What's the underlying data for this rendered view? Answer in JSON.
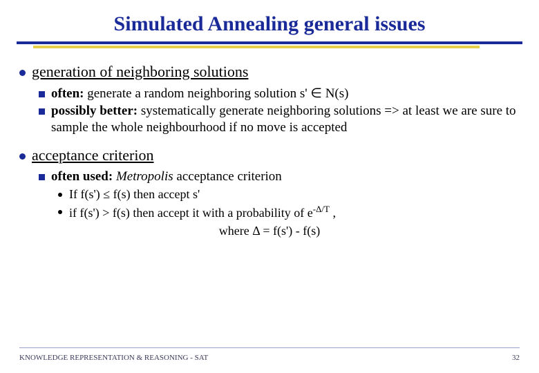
{
  "colors": {
    "title": "#1a2b99",
    "rule": "#1a2b99",
    "rule_accent": "#e6cf4a",
    "bullet_primary": "#1a2b99",
    "bullet_tertiary": "#000000",
    "background": "#ffffff",
    "footer_line": "#9aa0c7",
    "footer_text": "#3a3a5a"
  },
  "typography": {
    "family": "Times New Roman",
    "title_size_pt": 30,
    "b1_size_pt": 22,
    "b2_size_pt": 19,
    "b3_size_pt": 18,
    "footer_size_pt": 11
  },
  "title": "Simulated Annealing general issues",
  "sections": [
    {
      "heading": "generation of neighboring solutions",
      "items": [
        {
          "bold": "often:",
          "rest": " generate a random neighboring solution s' ∈ N(s)"
        },
        {
          "bold": "possibly better:",
          "rest": " systematically generate neighboring solutions => at least we are sure to sample the whole neighbourhood if no move is accepted"
        }
      ]
    },
    {
      "heading": " acceptance criterion",
      "items": [
        {
          "bold": "often used:",
          "italic": " Metropolis",
          "rest": " acceptance criterion",
          "sub": [
            "If f(s') ≤ f(s) then accept s'",
            "if f(s') > f(s) then accept it with a probability of e",
            " ,"
          ],
          "exponent": "-Δ/T",
          "equation": "where Δ = f(s') - f(s)"
        }
      ]
    }
  ],
  "footer": {
    "left": "KNOWLEDGE REPRESENTATION & REASONING - SAT",
    "page": "32"
  }
}
